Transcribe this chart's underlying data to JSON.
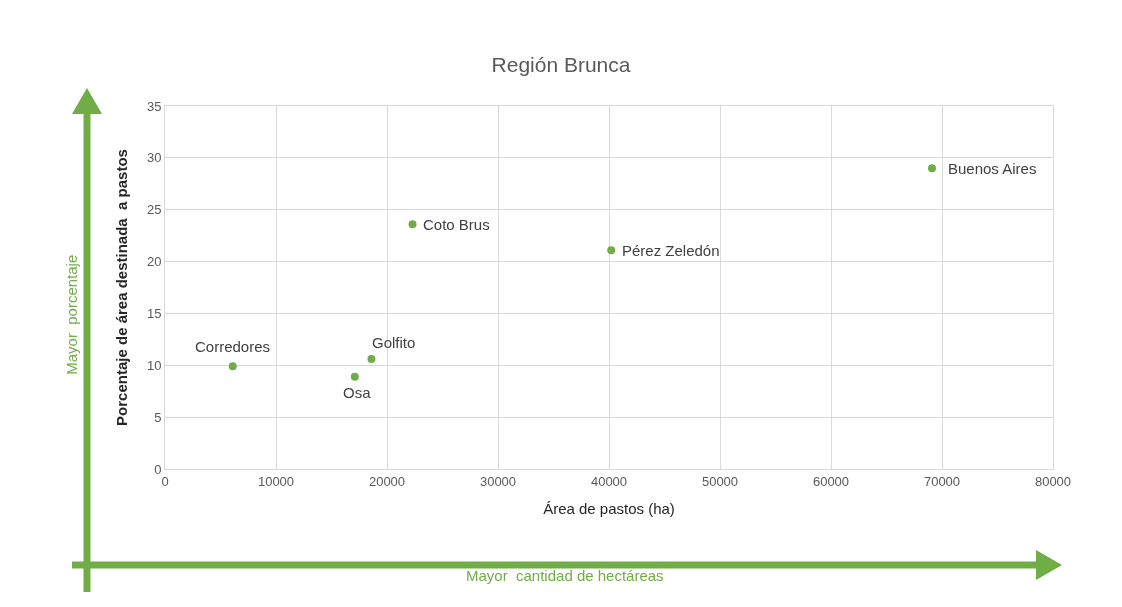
{
  "chart_data": {
    "type": "scatter",
    "title": "Región Brunca",
    "xlabel": "Área de pastos (ha)",
    "ylabel": "Porcentaje de área destinada  a pastos",
    "x": [
      6100,
      17100,
      18600,
      22300,
      40200,
      69100
    ],
    "values": [
      9.9,
      8.9,
      10.6,
      23.6,
      21.1,
      29.0
    ],
    "color": "#70ad47",
    "marker": "circle",
    "grid": true,
    "xlim": [
      0,
      80000
    ],
    "xticks": [
      0,
      10000,
      20000,
      30000,
      40000,
      50000,
      60000,
      70000,
      80000
    ],
    "ylim": [
      0,
      35
    ],
    "yticks": [
      0,
      5,
      10,
      15,
      20,
      25,
      30,
      35
    ],
    "annotations": [
      {
        "text": "Corredores",
        "x": 6100,
        "y": 9.9
      },
      {
        "text": "Osa",
        "x": 17100,
        "y": 8.9
      },
      {
        "text": "Golfito",
        "x": 18600,
        "y": 10.6
      },
      {
        "text": "Coto Brus",
        "x": 22300,
        "y": 23.6
      },
      {
        "text": "Pérez Zeledón",
        "x": 40200,
        "y": 21.1
      },
      {
        "text": "Buenos Aires",
        "x": 69100,
        "y": 29.0
      },
      "Mayor  porcentaje",
      "Mayor  cantidad de hectáreas"
    ]
  }
}
